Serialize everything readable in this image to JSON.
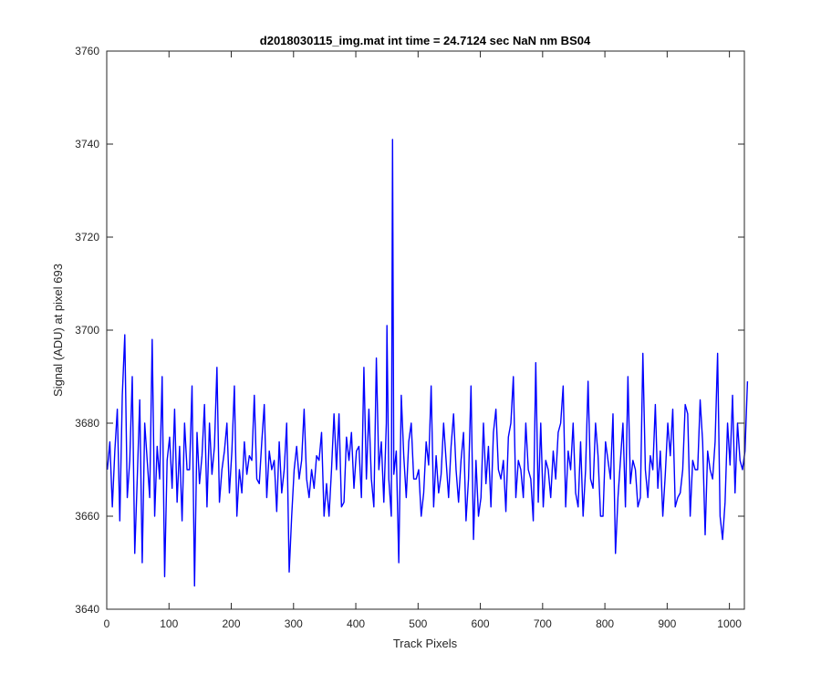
{
  "chart_data": {
    "type": "line",
    "title": "d2018030115_img.mat int time = 24.7124 sec  NaN nm BS04",
    "xlabel": "Track Pixels",
    "ylabel": "Signal (ADU) at pixel 693",
    "xlim": [
      0,
      1024
    ],
    "ylim": [
      3640,
      3760
    ],
    "x_ticks": [
      0,
      100,
      200,
      300,
      400,
      500,
      600,
      700,
      800,
      900,
      1000
    ],
    "y_ticks": [
      3640,
      3660,
      3680,
      3700,
      3720,
      3740,
      3760
    ],
    "grid": false,
    "line_color": "#0000ff",
    "series": [
      {
        "x_start": 1,
        "x_step": 4,
        "values": [
          3670,
          3676,
          3662,
          3674,
          3683,
          3659,
          3686,
          3699,
          3664,
          3672,
          3690,
          3652,
          3668,
          3685,
          3650,
          3680,
          3672,
          3664,
          3698,
          3660,
          3675,
          3668,
          3690,
          3647,
          3672,
          3677,
          3666,
          3683,
          3663,
          3675,
          3659,
          3680,
          3670,
          3670,
          3688,
          3645,
          3678,
          3667,
          3673,
          3684,
          3662,
          3680,
          3669,
          3675,
          3692,
          3663,
          3670,
          3674,
          3680,
          3665,
          3674,
          3688,
          3660,
          3670,
          3665,
          3676,
          3669,
          3673,
          3672,
          3686,
          3668,
          3667,
          3676,
          3684,
          3664,
          3674,
          3670,
          3672,
          3661,
          3676,
          3665,
          3670,
          3680,
          3648,
          3660,
          3670,
          3675,
          3668,
          3672,
          3683,
          3668,
          3664,
          3670,
          3666,
          3673,
          3672,
          3678,
          3660,
          3667,
          3660,
          3670,
          3682,
          3670,
          3682,
          3662,
          3663,
          3677,
          3672,
          3678,
          3666,
          3674,
          3675,
          3664,
          3692,
          3668,
          3683,
          3668,
          3662,
          3694,
          3670,
          3676,
          3663,
          3680,
          3668,
          3660,
          3669,
          3674,
          3650,
          3686,
          3673,
          3664,
          3676,
          3680,
          3668,
          3668,
          3670,
          3660,
          3665,
          3676,
          3671,
          3688,
          3662,
          3673,
          3665,
          3669,
          3680,
          3672,
          3664,
          3675,
          3682,
          3670,
          3663,
          3672,
          3678,
          3659,
          3668,
          3688,
          3655,
          3672,
          3660,
          3664,
          3680,
          3667,
          3675,
          3662,
          3678,
          3683,
          3670,
          3668,
          3672,
          3661,
          3677,
          3680,
          3690,
          3664,
          3672,
          3670,
          3664,
          3680,
          3670,
          3668,
          3659,
          3693,
          3663,
          3680,
          3662,
          3672,
          3670,
          3664,
          3674,
          3668,
          3678,
          3680,
          3688,
          3662,
          3674,
          3670,
          3680,
          3665,
          3662,
          3676,
          3660,
          3670,
          3689,
          3668,
          3666,
          3680,
          3673,
          3660,
          3660,
          3676,
          3672,
          3668,
          3682,
          3652,
          3664,
          3672,
          3680,
          3662,
          3690,
          3667,
          3672,
          3670,
          3662,
          3664,
          3695,
          3670,
          3664,
          3673,
          3670,
          3684,
          3666,
          3674,
          3660,
          3669,
          3680,
          3673,
          3683,
          3662,
          3664,
          3665,
          3670,
          3684,
          3682,
          3660,
          3672,
          3670,
          3670,
          3685,
          3676,
          3656,
          3674,
          3670,
          3668,
          3676,
          3695,
          3660,
          3655,
          3663,
          3680,
          3671,
          3686,
          3665,
          3680,
          3672,
          3670,
          3674,
          3689
        ]
      }
    ],
    "notable_points": [
      {
        "x": 450,
        "y": 3701
      },
      {
        "x": 459,
        "y": 3741
      }
    ]
  }
}
